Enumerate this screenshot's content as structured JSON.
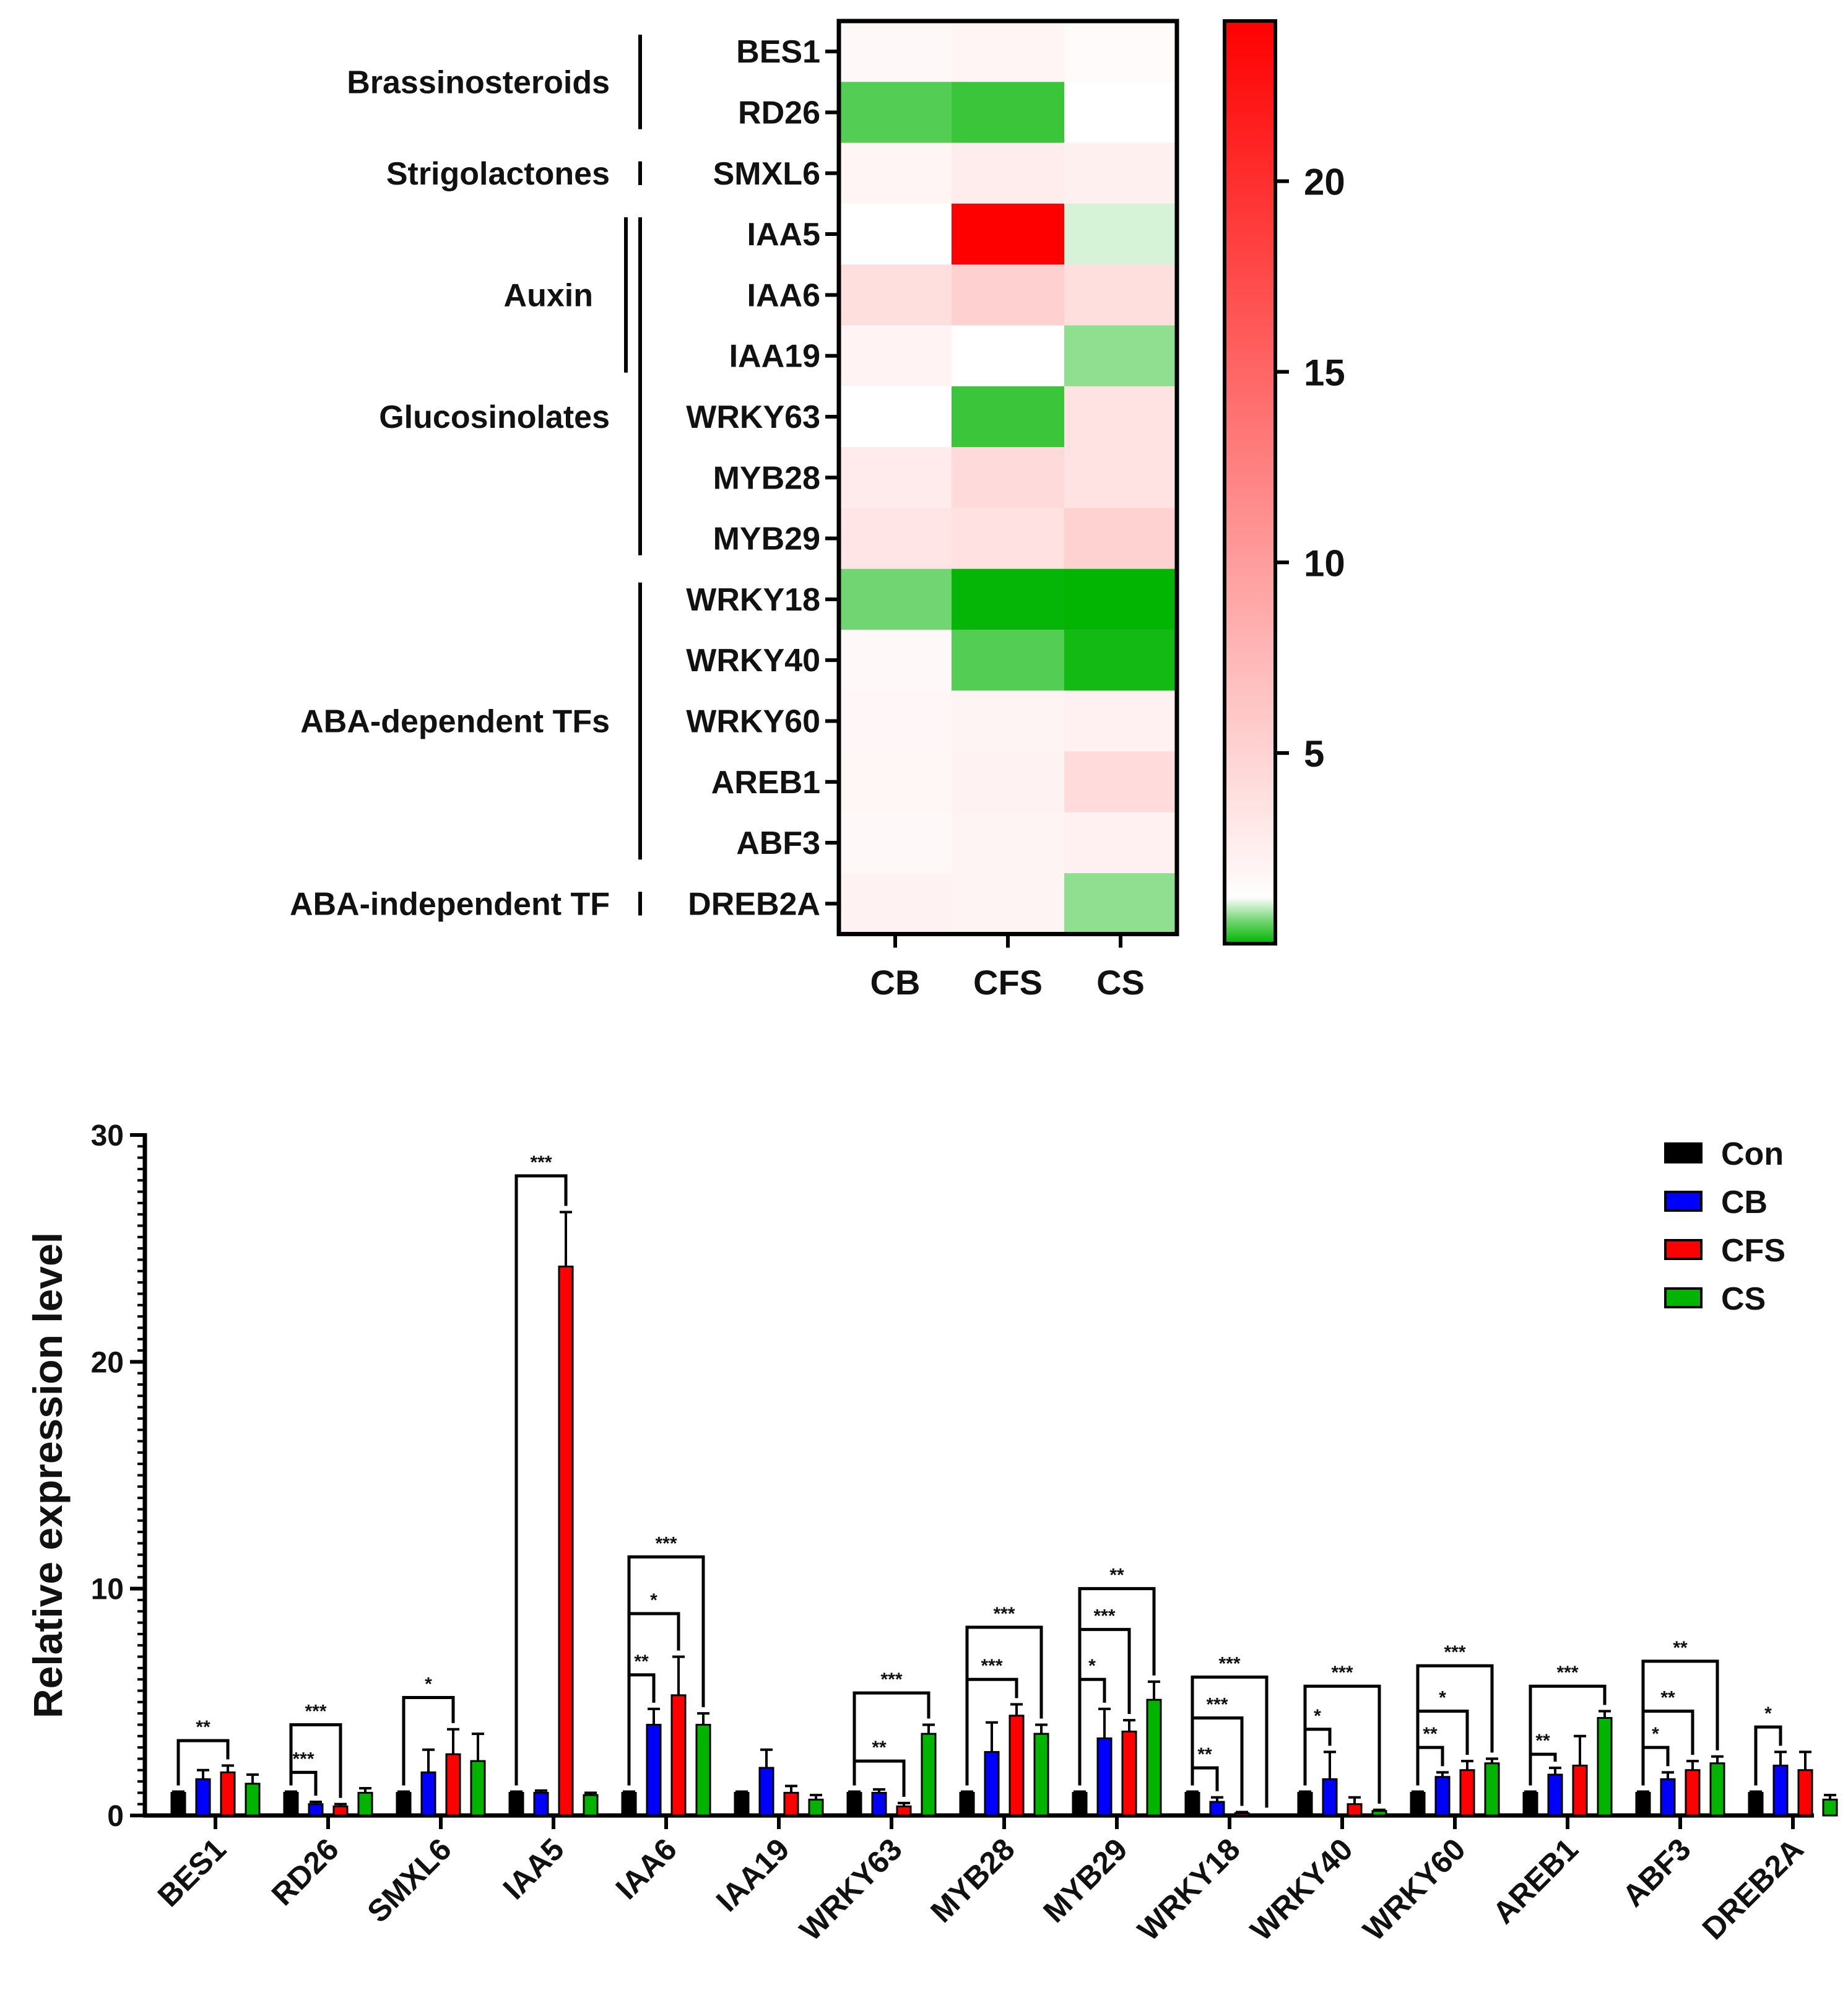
{
  "chart_data": [
    {
      "type": "heatmap",
      "columns": [
        "CB",
        "CFS",
        "CS"
      ],
      "rows": [
        "BES1",
        "RD26",
        "SMXL6",
        "IAA5",
        "IAA6",
        "IAA19",
        "WRKY63",
        "MYB28",
        "MYB29",
        "WRKY18",
        "WRKY40",
        "WRKY60",
        "AREB1",
        "ABF3",
        "DREB2A"
      ],
      "values": [
        [
          1.6,
          1.9,
          1.4
        ],
        [
          0.5,
          0.4,
          1.0
        ],
        [
          1.9,
          2.7,
          2.4
        ],
        [
          1.0,
          24.2,
          0.9
        ],
        [
          4.0,
          5.3,
          4.0
        ],
        [
          2.1,
          1.0,
          0.7
        ],
        [
          1.0,
          0.4,
          3.6
        ],
        [
          2.8,
          4.4,
          3.6
        ],
        [
          3.4,
          3.7,
          5.1
        ],
        [
          0.6,
          0.1,
          0.05
        ],
        [
          1.6,
          0.5,
          0.2
        ],
        [
          1.7,
          2.0,
          2.3
        ],
        [
          1.8,
          2.2,
          4.3
        ],
        [
          1.6,
          2.0,
          2.3
        ],
        [
          2.2,
          2.0,
          0.7
        ]
      ],
      "groups": [
        {
          "name": "Brassinosteroids",
          "rows": [
            "BES1",
            "RD26"
          ]
        },
        {
          "name": "Strigolactones",
          "rows": [
            "SMXL6"
          ]
        },
        {
          "name": "Auxin",
          "rows": [
            "IAA5",
            "IAA6",
            "IAA19"
          ]
        },
        {
          "name": "Glucosinolates",
          "rows": [
            "IAA5",
            "IAA6",
            "IAA19",
            "WRKY63",
            "MYB28",
            "MYB29"
          ]
        },
        {
          "name": "ABA-dependent  TFs",
          "rows": [
            "WRKY18",
            "WRKY40",
            "WRKY60",
            "AREB1",
            "ABF3"
          ]
        },
        {
          "name": "ABA-independent  TF",
          "rows": [
            "DREB2A"
          ]
        }
      ],
      "colorbar": {
        "min": 0,
        "max": 24.2,
        "ticks": [
          5,
          10,
          15,
          20
        ],
        "low_color": "#00b400",
        "mid_color": "#ffffff",
        "high_color": "#ff0000",
        "mid_value": 1
      }
    },
    {
      "type": "bar",
      "ylabel": "Relative expression level",
      "ylim": [
        0,
        30
      ],
      "yticks": [
        0,
        10,
        20,
        30
      ],
      "categories": [
        "BES1",
        "RD26",
        "SMXL6",
        "IAA5",
        "IAA6",
        "IAA19",
        "WRKY63",
        "MYB28",
        "MYB29",
        "WRKY18",
        "WRKY40",
        "WRKY60",
        "AREB1",
        "ABF3",
        "DREB2A"
      ],
      "series": [
        {
          "name": "Con",
          "color": "#000000",
          "values": [
            1,
            1,
            1,
            1,
            1,
            1,
            1,
            1,
            1,
            1,
            1,
            1,
            1,
            1,
            1
          ],
          "errors": [
            0.05,
            0.05,
            0.05,
            0.05,
            0.05,
            0.05,
            0.05,
            0.05,
            0.05,
            0.05,
            0.05,
            0.05,
            0.05,
            0.05,
            0.05
          ]
        },
        {
          "name": "CB",
          "color": "#0000ff",
          "values": [
            1.6,
            0.5,
            1.9,
            1.0,
            4.0,
            2.1,
            1.0,
            2.8,
            3.4,
            0.6,
            1.6,
            1.7,
            1.8,
            1.6,
            2.2
          ],
          "errors": [
            0.4,
            0.1,
            1.0,
            0.1,
            0.7,
            0.8,
            0.15,
            1.3,
            1.3,
            0.2,
            1.2,
            0.2,
            0.3,
            0.3,
            0.6
          ]
        },
        {
          "name": "CFS",
          "color": "#ff0000",
          "values": [
            1.9,
            0.4,
            2.7,
            24.2,
            5.3,
            1.0,
            0.4,
            4.4,
            3.7,
            0.1,
            0.5,
            2.0,
            2.2,
            2.0,
            2.0
          ],
          "errors": [
            0.3,
            0.1,
            1.1,
            2.4,
            1.7,
            0.3,
            0.15,
            0.5,
            0.5,
            0.05,
            0.3,
            0.4,
            1.3,
            0.4,
            0.8
          ]
        },
        {
          "name": "CS",
          "color": "#00b400",
          "values": [
            1.4,
            1.0,
            2.4,
            0.9,
            4.0,
            0.7,
            3.6,
            3.6,
            5.1,
            0.05,
            0.2,
            2.3,
            4.3,
            2.3,
            0.7
          ],
          "errors": [
            0.4,
            0.2,
            1.2,
            0.1,
            0.5,
            0.2,
            0.4,
            0.4,
            0.8,
            0.02,
            0.05,
            0.2,
            0.3,
            0.3,
            0.2
          ]
        }
      ],
      "significance": [
        {
          "category": "BES1",
          "to": "CFS",
          "label": "**",
          "y": 3.3
        },
        {
          "category": "RD26",
          "to": "CB",
          "label": "***",
          "y": 1.9
        },
        {
          "category": "RD26",
          "to": "CFS",
          "label": "***",
          "y": 4.0
        },
        {
          "category": "SMXL6",
          "to": "CFS",
          "label": "*",
          "y": 5.2
        },
        {
          "category": "IAA5",
          "to": "CFS",
          "label": "***",
          "y": 28.2
        },
        {
          "category": "IAA6",
          "to": "CB",
          "label": "**",
          "y": 6.2
        },
        {
          "category": "IAA6",
          "to": "CFS",
          "label": "*",
          "y": 8.9
        },
        {
          "category": "IAA6",
          "to": "CS",
          "label": "***",
          "y": 11.4
        },
        {
          "category": "WRKY63",
          "to": "CFS",
          "label": "**",
          "y": 2.4
        },
        {
          "category": "WRKY63",
          "to": "CS",
          "label": "***",
          "y": 5.4
        },
        {
          "category": "MYB28",
          "to": "CFS",
          "label": "***",
          "y": 6.0
        },
        {
          "category": "MYB28",
          "to": "CS",
          "label": "***",
          "y": 8.3
        },
        {
          "category": "MYB29",
          "to": "CB",
          "label": "*",
          "y": 6.0
        },
        {
          "category": "MYB29",
          "to": "CFS",
          "label": "***",
          "y": 8.2
        },
        {
          "category": "MYB29",
          "to": "CS",
          "label": "**",
          "y": 10.0
        },
        {
          "category": "WRKY18",
          "to": "CB",
          "label": "**",
          "y": 2.1
        },
        {
          "category": "WRKY18",
          "to": "CFS",
          "label": "***",
          "y": 4.3
        },
        {
          "category": "WRKY18",
          "to": "CS",
          "label": "***",
          "y": 6.1
        },
        {
          "category": "WRKY40",
          "to": "CB",
          "label": "*",
          "y": 3.8
        },
        {
          "category": "WRKY40",
          "to": "CS",
          "label": "***",
          "y": 5.7
        },
        {
          "category": "WRKY60",
          "to": "CB",
          "label": "**",
          "y": 3.0
        },
        {
          "category": "WRKY60",
          "to": "CFS",
          "label": "*",
          "y": 4.6
        },
        {
          "category": "WRKY60",
          "to": "CS",
          "label": "***",
          "y": 6.6
        },
        {
          "category": "AREB1",
          "to": "CB",
          "label": "**",
          "y": 2.7
        },
        {
          "category": "AREB1",
          "to": "CS",
          "label": "***",
          "y": 5.7
        },
        {
          "category": "ABF3",
          "to": "CB",
          "label": "*",
          "y": 3.0
        },
        {
          "category": "ABF3",
          "to": "CFS",
          "label": "**",
          "y": 4.6
        },
        {
          "category": "ABF3",
          "to": "CS",
          "label": "**",
          "y": 6.8
        },
        {
          "category": "DREB2A",
          "to": "CB",
          "label": "*",
          "y": 3.9
        }
      ],
      "legend": {
        "position": "top-right",
        "entries": [
          "Con",
          "CB",
          "CFS",
          "CS"
        ]
      }
    }
  ]
}
